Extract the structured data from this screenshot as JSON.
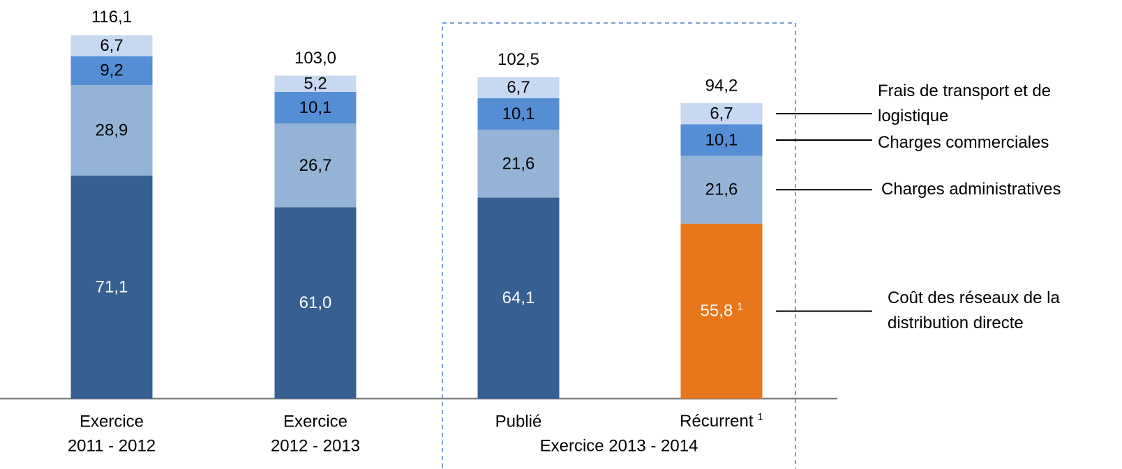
{
  "chart_data": {
    "type": "stacked_bar",
    "categories": [
      [
        "Exercice",
        "2011 - 2012"
      ],
      [
        "Exercice",
        "2012 - 2013"
      ],
      [
        "Publié"
      ],
      [
        "Récurrent"
      ]
    ],
    "group_label": "Exercice 2013 - 2014",
    "footnote": "1",
    "series": [
      {
        "name": "Coût des réseaux de la distribution directe",
        "color": "#376092",
        "colors": [
          "#376092",
          "#376092",
          "#376092",
          "#e8761a"
        ],
        "label_color": "#ffffff",
        "values": [
          71.1,
          61.0,
          64.1,
          55.8
        ],
        "value_labels": [
          "71,1",
          "61,0",
          "64,1",
          "55,8"
        ]
      },
      {
        "name": "Charges administratives",
        "color": "#95b3d7",
        "label_color": "#000000",
        "values": [
          28.9,
          26.7,
          21.6,
          21.6
        ],
        "value_labels": [
          "28,9",
          "26,7",
          "21,6",
          "21,6"
        ]
      },
      {
        "name": "Charges commerciales",
        "color": "#558ed5",
        "label_color": "#000000",
        "values": [
          9.2,
          10.1,
          10.1,
          10.1
        ],
        "value_labels": [
          "9,2",
          "10,1",
          "10,1",
          "10,1"
        ]
      },
      {
        "name": "Frais de transport et de logistique",
        "color": "#c6d9f1",
        "label_color": "#000000",
        "values": [
          6.7,
          5.2,
          6.7,
          6.7
        ],
        "value_labels": [
          "6,7",
          "5,2",
          "6,7",
          "6,7"
        ]
      }
    ],
    "totals": [
      116.1,
      103.0,
      102.5,
      94.2
    ],
    "total_labels": [
      "116,1",
      "103,0",
      "102,5",
      "94,2"
    ],
    "ylim": [
      0,
      125
    ]
  }
}
